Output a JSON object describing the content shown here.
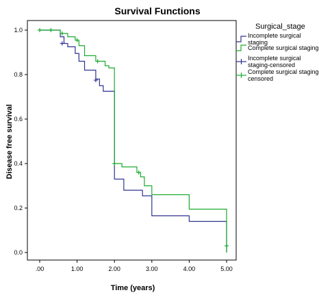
{
  "chart_data": {
    "type": "line",
    "title": "Survival Functions",
    "xlabel": "Time (years)",
    "ylabel": "Disease free survival",
    "xlim": [
      0,
      5
    ],
    "ylim": [
      0,
      1
    ],
    "x_ticks": [
      0,
      1,
      2,
      3,
      4,
      5
    ],
    "x_tick_labels": [
      ".00",
      "1.00",
      "2.00",
      "3.00",
      "4.00",
      "5.00"
    ],
    "y_ticks": [
      0,
      0.2,
      0.4,
      0.6,
      0.8,
      1.0
    ],
    "y_tick_labels": [
      "0.0",
      "0.2",
      "0.4",
      "0.6",
      "0.8",
      "1.0"
    ],
    "grid": false,
    "legend": {
      "title": "Surgical_stage",
      "placement": "right",
      "entries": [
        {
          "label": "Incomplete surgical staging",
          "lines": [
            "Incomplete surgical",
            "staging"
          ],
          "kind": "line",
          "series": 0
        },
        {
          "label": "Complete surgical staging",
          "lines": [
            "Complete surgical staging"
          ],
          "kind": "line",
          "series": 1
        },
        {
          "label": "Incomplete surgical staging-censored",
          "lines": [
            "Incomplete surgical",
            "staging-censored"
          ],
          "kind": "censor",
          "series": 0
        },
        {
          "label": "Complete surgical staging-censored",
          "lines": [
            "Complete surgical staging-",
            "censored"
          ],
          "kind": "censor",
          "series": 1
        }
      ]
    },
    "series": [
      {
        "name": "Incomplete surgical staging",
        "color": "#2e3192",
        "steps": [
          [
            0,
            1.0
          ],
          [
            0.55,
            0.97
          ],
          [
            0.65,
            0.94
          ],
          [
            0.75,
            0.925
          ],
          [
            0.95,
            0.895
          ],
          [
            1.05,
            0.86
          ],
          [
            1.2,
            0.82
          ],
          [
            1.5,
            0.78
          ],
          [
            1.6,
            0.75
          ],
          [
            1.7,
            0.725
          ],
          [
            2.0,
            0.33
          ],
          [
            2.25,
            0.28
          ],
          [
            2.75,
            0.255
          ],
          [
            3.0,
            0.165
          ],
          [
            4.0,
            0.14
          ],
          [
            5.0,
            0.0
          ]
        ],
        "censored": [
          [
            0.6,
            0.94
          ],
          [
            1.5,
            0.775
          ]
        ]
      },
      {
        "name": "Complete surgical staging",
        "color": "#1aaa2e",
        "steps": [
          [
            0,
            1.0
          ],
          [
            0.55,
            0.985
          ],
          [
            0.75,
            0.97
          ],
          [
            0.95,
            0.955
          ],
          [
            1.05,
            0.93
          ],
          [
            1.2,
            0.885
          ],
          [
            1.5,
            0.86
          ],
          [
            1.75,
            0.84
          ],
          [
            1.85,
            0.83
          ],
          [
            2.0,
            0.4
          ],
          [
            2.2,
            0.385
          ],
          [
            2.6,
            0.36
          ],
          [
            2.7,
            0.34
          ],
          [
            2.8,
            0.3
          ],
          [
            3.0,
            0.26
          ],
          [
            4.0,
            0.195
          ],
          [
            5.0,
            0.0
          ]
        ],
        "censored": [
          [
            0,
            1.0
          ],
          [
            0.3,
            1.0
          ],
          [
            0.6,
            0.985
          ],
          [
            1.0,
            0.955
          ],
          [
            1.55,
            0.86
          ],
          [
            2.0,
            0.4
          ],
          [
            2.65,
            0.36
          ],
          [
            5.0,
            0.03
          ]
        ]
      }
    ]
  }
}
